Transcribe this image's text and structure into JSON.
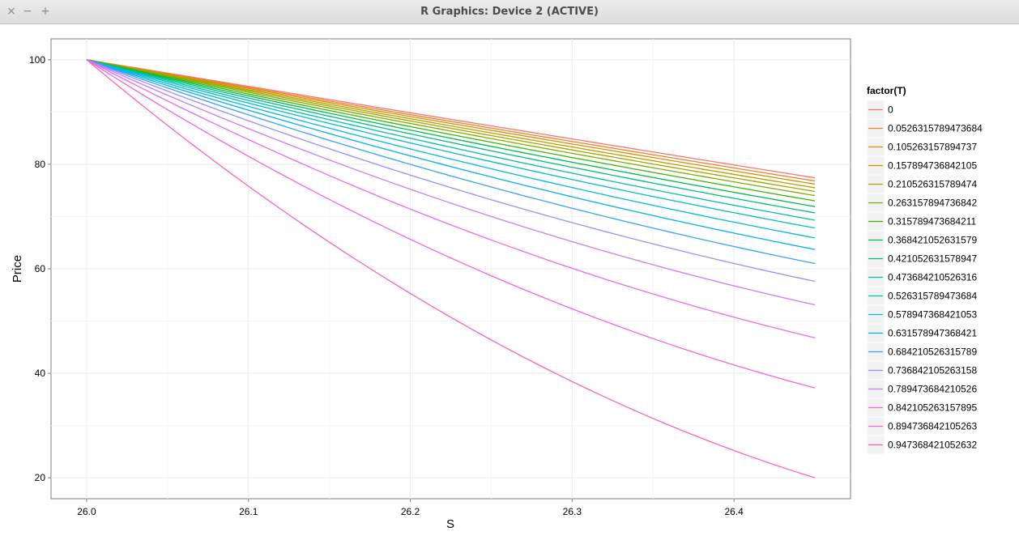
{
  "window": {
    "title": "R Graphics: Device 2 (ACTIVE)",
    "close_icon": "×",
    "minimize_icon": "−",
    "maximize_icon": "+"
  },
  "chart_data": {
    "type": "line",
    "title": "",
    "xlabel": "S",
    "ylabel": "Price",
    "xlim": [
      25.978,
      26.472
    ],
    "ylim": [
      16,
      104
    ],
    "x_ticks": [
      "26.0",
      "26.1",
      "26.2",
      "26.3",
      "26.4"
    ],
    "y_ticks": [
      "20",
      "40",
      "60",
      "80",
      "100"
    ],
    "grid": true,
    "legend_title": "factor(T)",
    "legend_position": "right",
    "x": [
      26.0,
      26.45
    ],
    "series": [
      {
        "name": "0",
        "color": "#F8766D",
        "values": [
          100,
          77.4
        ]
      },
      {
        "name": "0.0526315789473684",
        "color": "#EA8331",
        "values": [
          100,
          76.8
        ]
      },
      {
        "name": "0.105263157894737",
        "color": "#D89000",
        "values": [
          100,
          76.2
        ]
      },
      {
        "name": "0.157894736842105",
        "color": "#C09B00",
        "values": [
          100,
          75.5
        ]
      },
      {
        "name": "0.210526315789474",
        "color": "#A3A500",
        "values": [
          100,
          74.8
        ]
      },
      {
        "name": "0.263157894736842",
        "color": "#7CAE00",
        "values": [
          100,
          74.0
        ]
      },
      {
        "name": "0.315789473684211",
        "color": "#39B600",
        "values": [
          100,
          73.0
        ]
      },
      {
        "name": "0.368421052631579",
        "color": "#00BB4E",
        "values": [
          100,
          71.9
        ]
      },
      {
        "name": "0.421052631578947",
        "color": "#00BF7D",
        "values": [
          100,
          70.7
        ]
      },
      {
        "name": "0.473684210526316",
        "color": "#00C1A3",
        "values": [
          100,
          69.3
        ]
      },
      {
        "name": "0.526315789473684",
        "color": "#00BFC4",
        "values": [
          100,
          67.8
        ]
      },
      {
        "name": "0.578947368421053",
        "color": "#00BAE0",
        "values": [
          100,
          65.9
        ]
      },
      {
        "name": "0.631578947368421",
        "color": "#00B0F6",
        "values": [
          100,
          63.7
        ]
      },
      {
        "name": "0.684210526315789",
        "color": "#35A2FF",
        "values": [
          100,
          61.0
        ]
      },
      {
        "name": "0.736842105263158",
        "color": "#9590FF",
        "values": [
          100,
          57.6
        ]
      },
      {
        "name": "0.789473684210526",
        "color": "#C77CFF",
        "values": [
          100,
          53.1
        ]
      },
      {
        "name": "0.842105263157895",
        "color": "#E76BF3",
        "values": [
          100,
          46.8
        ]
      },
      {
        "name": "0.894736842105263",
        "color": "#FA62DB",
        "values": [
          100,
          37.2
        ]
      },
      {
        "name": "0.947368421052632",
        "color": "#FF62BC",
        "values": [
          100,
          20.0
        ]
      }
    ]
  }
}
